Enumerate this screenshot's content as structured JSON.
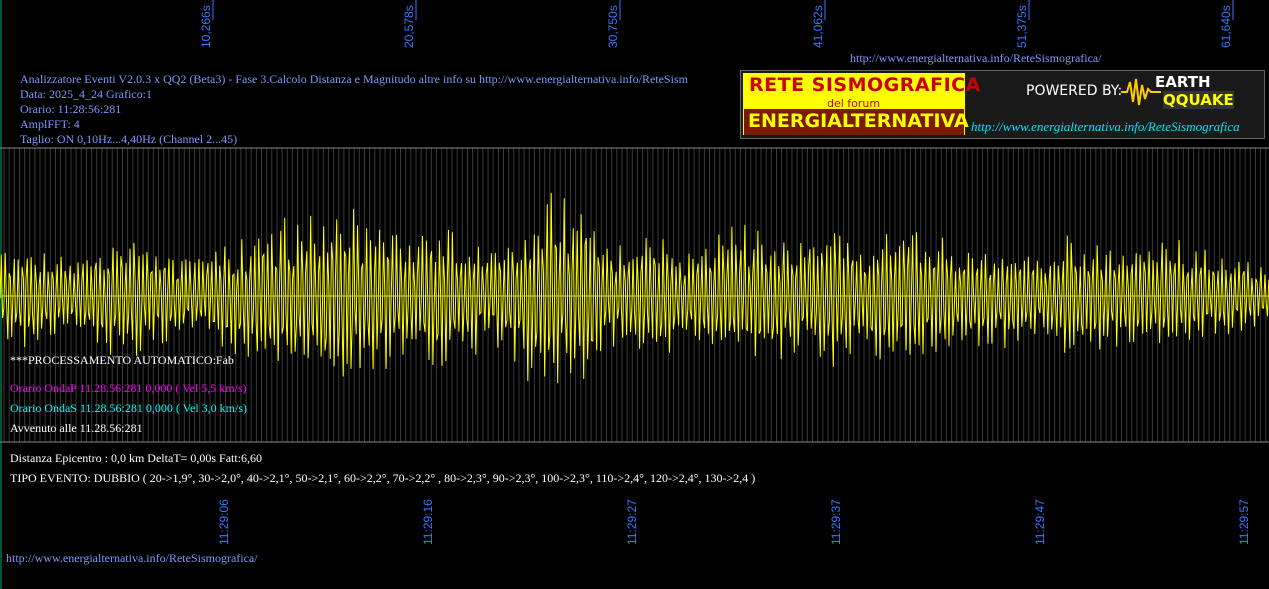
{
  "chart_data": {
    "type": "line",
    "title": "",
    "xlabel": "",
    "ylabel": "",
    "top_axis_ticks": [
      "10,266s",
      "20,578s",
      "30,750s",
      "41,062s",
      "51,375s",
      "61,640s"
    ],
    "bottom_axis_ticks": [
      "11:29:06",
      "11:29:16",
      "11:29:27",
      "11:29:37",
      "11:29:47",
      "11:29:57"
    ],
    "grid": true,
    "series": [
      {
        "color": "#ffff00"
      }
    ],
    "envelope": [
      [
        0,
        45
      ],
      [
        30,
        55
      ],
      [
        60,
        40
      ],
      [
        90,
        50
      ],
      [
        120,
        65
      ],
      [
        150,
        55
      ],
      [
        200,
        40
      ],
      [
        250,
        70
      ],
      [
        300,
        75
      ],
      [
        330,
        95
      ],
      [
        370,
        85
      ],
      [
        400,
        60
      ],
      [
        430,
        75
      ],
      [
        470,
        65
      ],
      [
        500,
        55
      ],
      [
        550,
        110
      ],
      [
        580,
        95
      ],
      [
        610,
        60
      ],
      [
        650,
        65
      ],
      [
        700,
        55
      ],
      [
        740,
        70
      ],
      [
        790,
        60
      ],
      [
        830,
        80
      ],
      [
        860,
        55
      ],
      [
        900,
        70
      ],
      [
        940,
        65
      ],
      [
        970,
        50
      ],
      [
        1000,
        55
      ],
      [
        1040,
        40
      ],
      [
        1070,
        70
      ],
      [
        1100,
        55
      ],
      [
        1150,
        60
      ],
      [
        1200,
        50
      ],
      [
        1240,
        40
      ],
      [
        1269,
        35
      ]
    ]
  },
  "header": {
    "line1": "Analizzatore Eventi V2.0.3 x QQ2 (Beta3) - Fase 3.Calcolo Distanza e Magnitudo altre info su http://www.energialternativa.info/ReteSism",
    "line2": "Data: 2025_4_24 Grafico:1",
    "line3": "Orario: 11:28:56:281",
    "line4": "AmplFFT: 4",
    "line5": "Taglio: ON 0,10Hz...4,40Hz       (Channel 2...45)"
  },
  "top_url": "http://www.energialternativa.info/ReteSismografica/",
  "bottom_url": "http://www.energialternativa.info/ReteSismografica/",
  "logo": {
    "title1": "RETE SISMOGRAFICA",
    "title2": "del forum",
    "title3": "ENERGIALTERNATIVA",
    "powered": "POWERED BY:",
    "eq1": "EARTH",
    "eq2": "QQUAKE",
    "url": "http://www.energialternativa.info/ReteSismografica"
  },
  "processing": {
    "auto": "***PROCESSAMENTO AUTOMATICO:Fab",
    "ondaP": "Orario OndaP 11.28.56:281  0,000 ( Vel 5,5 km/s)",
    "ondaS": "Orario OndaS 11.28.56:281  0,000 ( Vel 3,0 km/s)",
    "avvenuto": "Avvenuto alle 11.28.56:281"
  },
  "result": {
    "distanza": "Distanza Epicentro : 0,0 km DeltaT= 0,00s  Fatt:6,60",
    "tipo": "TIPO EVENTO: DUBBIO ( 20->1,9°, 30->2,0°, 40->2,1°, 50->2,1°, 60->2,2°, 70->2,2° , 80->2,3°, 90->2,3°, 100->2,3°, 110->2,4°, 120->2,4°, 130->2,4 )"
  },
  "colors": {
    "grid": "#3a3a3a",
    "trace": "#ffff00",
    "axis_text": "#3a78ff",
    "info": "#7f97ff"
  }
}
